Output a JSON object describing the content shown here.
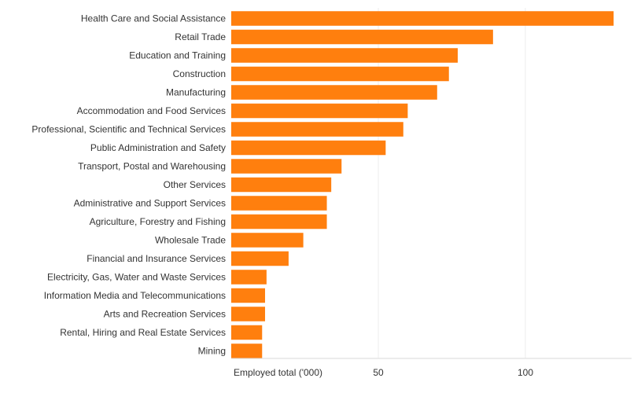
{
  "chart_data": {
    "type": "bar",
    "orientation": "horizontal",
    "xlabel": "Employed total ('000)",
    "ylabel": "",
    "xlim": [
      0,
      140
    ],
    "x_ticks": [
      50,
      100
    ],
    "grid": true,
    "bar_color": "#ff7f0e",
    "categories": [
      "Health Care and Social Assistance",
      "Retail Trade",
      "Education and Training",
      "Construction",
      "Manufacturing",
      "Accommodation and Food Services",
      "Professional, Scientific and Technical Services",
      "Public Administration and Safety",
      "Transport, Postal and Warehousing",
      "Other Services",
      "Administrative and Support Services",
      "Agriculture, Forestry and Fishing",
      "Wholesale Trade",
      "Financial and Insurance Services",
      "Electricity, Gas, Water and Waste Services",
      "Information Media and Telecommunications",
      "Arts and Recreation Services",
      "Rental, Hiring and Real Estate Services",
      "Mining"
    ],
    "values": [
      130,
      89,
      77,
      74,
      70,
      60,
      58.5,
      52.5,
      37.5,
      34,
      32.5,
      32.5,
      24.5,
      19.5,
      12,
      11.5,
      11.5,
      10.5,
      10.5
    ]
  }
}
